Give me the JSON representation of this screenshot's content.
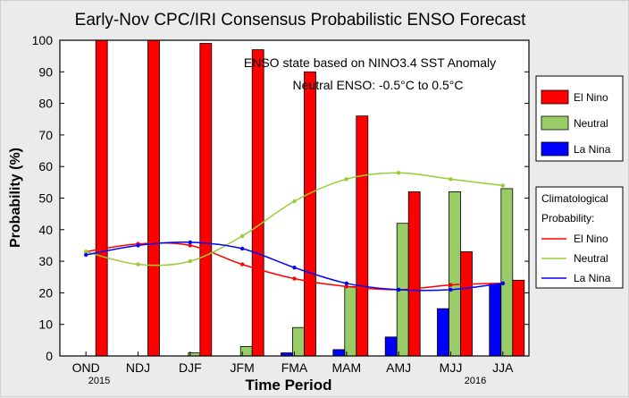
{
  "chart_data": {
    "type": "bar",
    "title": "Early-Nov CPC/IRI Consensus Probabilistic ENSO Forecast",
    "xlabel": "Time Period",
    "ylabel": "Probability (%)",
    "ylim": [
      0,
      100
    ],
    "yticks": [
      0,
      10,
      20,
      30,
      40,
      50,
      60,
      70,
      80,
      90,
      100
    ],
    "grid": false,
    "categories": [
      "OND",
      "NDJ",
      "DJF",
      "JFM",
      "FMA",
      "MAM",
      "AMJ",
      "MJJ",
      "JJA"
    ],
    "year_labels": {
      "first": "2015",
      "last": "2016"
    },
    "annotations": [
      "ENSO state based on NINO3.4 SST Anomaly",
      "Neutral ENSO: -0.5°C to 0.5°C"
    ],
    "series": [
      {
        "name": "La Nina",
        "color": "#0000ff",
        "values": [
          0,
          0,
          0,
          0,
          1,
          2,
          6,
          15,
          23
        ]
      },
      {
        "name": "Neutral",
        "color": "#99cc66",
        "values": [
          0,
          0,
          1,
          3,
          9,
          22,
          42,
          52,
          53
        ]
      },
      {
        "name": "El Nino",
        "color": "#ff0000",
        "values": [
          100,
          100,
          99,
          97,
          90,
          76,
          52,
          33,
          24
        ]
      }
    ],
    "climatology": {
      "title_line1": "Climatological",
      "title_line2": "Probability:",
      "series": [
        {
          "name": "El Nino",
          "color": "#ff0000",
          "values": [
            33,
            35.5,
            35,
            29,
            24.5,
            22,
            21,
            22.5,
            23
          ]
        },
        {
          "name": "Neutral",
          "color": "#99cc33",
          "values": [
            33,
            29,
            30,
            38,
            49,
            56,
            58,
            56,
            54
          ]
        },
        {
          "name": "La Nina",
          "color": "#0000ff",
          "values": [
            32,
            35,
            36,
            34,
            28,
            23,
            21,
            21,
            23
          ]
        }
      ]
    },
    "legend_placement": "right"
  }
}
